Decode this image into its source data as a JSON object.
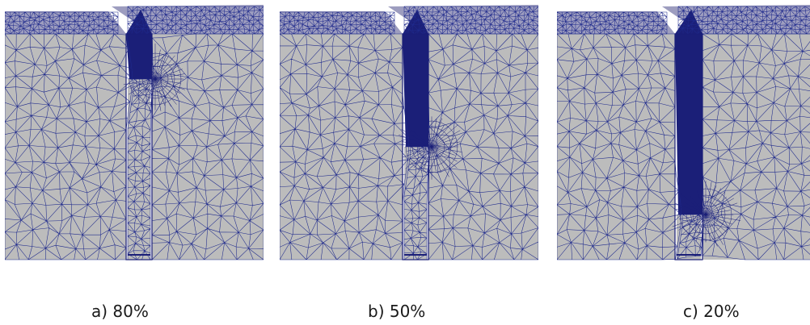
{
  "figure": {
    "panels": [
      {
        "id": "a",
        "caption": "a) 80%",
        "crack_ratio": 0.8
      },
      {
        "id": "b",
        "caption": "b) 50%",
        "crack_ratio": 0.5
      },
      {
        "id": "c",
        "caption": "c) 20%",
        "crack_ratio": 0.2
      }
    ],
    "colors": {
      "mesh_line": "#1f2a8c",
      "surface": "#bcbcbc",
      "top_surface": "#9d9dbf",
      "dense_mesh": "#1b1f78",
      "background": "#ffffff"
    }
  }
}
